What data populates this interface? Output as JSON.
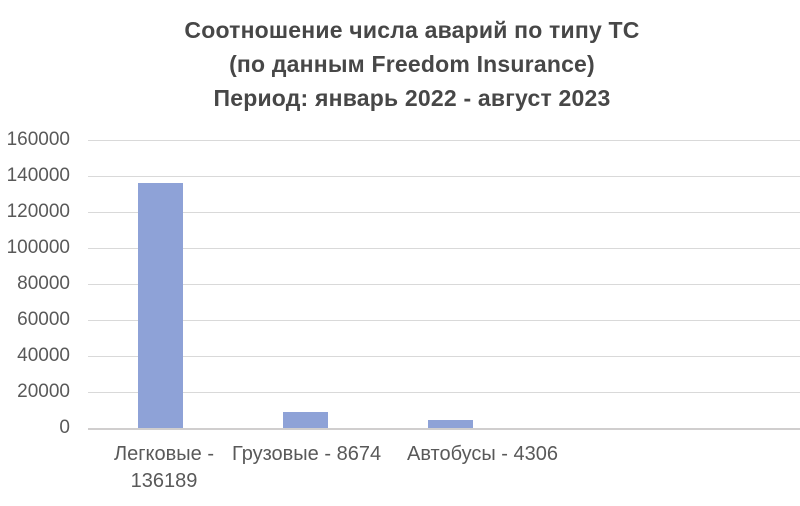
{
  "chart_data": {
    "type": "bar",
    "title": "Соотношение числа аварий по типу ТС (по данным Freedom Insurance) Период: январь 2022 - август 2023",
    "title_lines": [
      "Соотношение числа аварий по типу ТС",
      "(по данным Freedom Insurance)",
      "Период: январь 2022 - август 2023"
    ],
    "categories": [
      "Легковые - 136189",
      "Грузовые - 8674",
      "Автобусы - 4306"
    ],
    "values": [
      136189,
      8674,
      4306
    ],
    "category_label_lines": [
      [
        "Легковые -",
        "136189"
      ],
      [
        "Грузовые - 8674"
      ],
      [
        "Автобусы - 4306"
      ]
    ],
    "xlabel": "",
    "ylabel": "",
    "ylim": [
      0,
      160000
    ],
    "y_axis": {
      "min": 0,
      "max": 160000,
      "step": 20000,
      "tick_labels": [
        "160000",
        "140000",
        "120000",
        "100000",
        "80000",
        "60000",
        "40000",
        "20000",
        "0"
      ]
    },
    "grid": true,
    "legend_position": "none",
    "colors": {
      "bar_fill": "#8ea2d7",
      "gridline": "#d9d9d9",
      "axis_line": "#d0cece",
      "tick_text": "#595959",
      "title_text": "#474747",
      "background": "#ffffff"
    }
  }
}
